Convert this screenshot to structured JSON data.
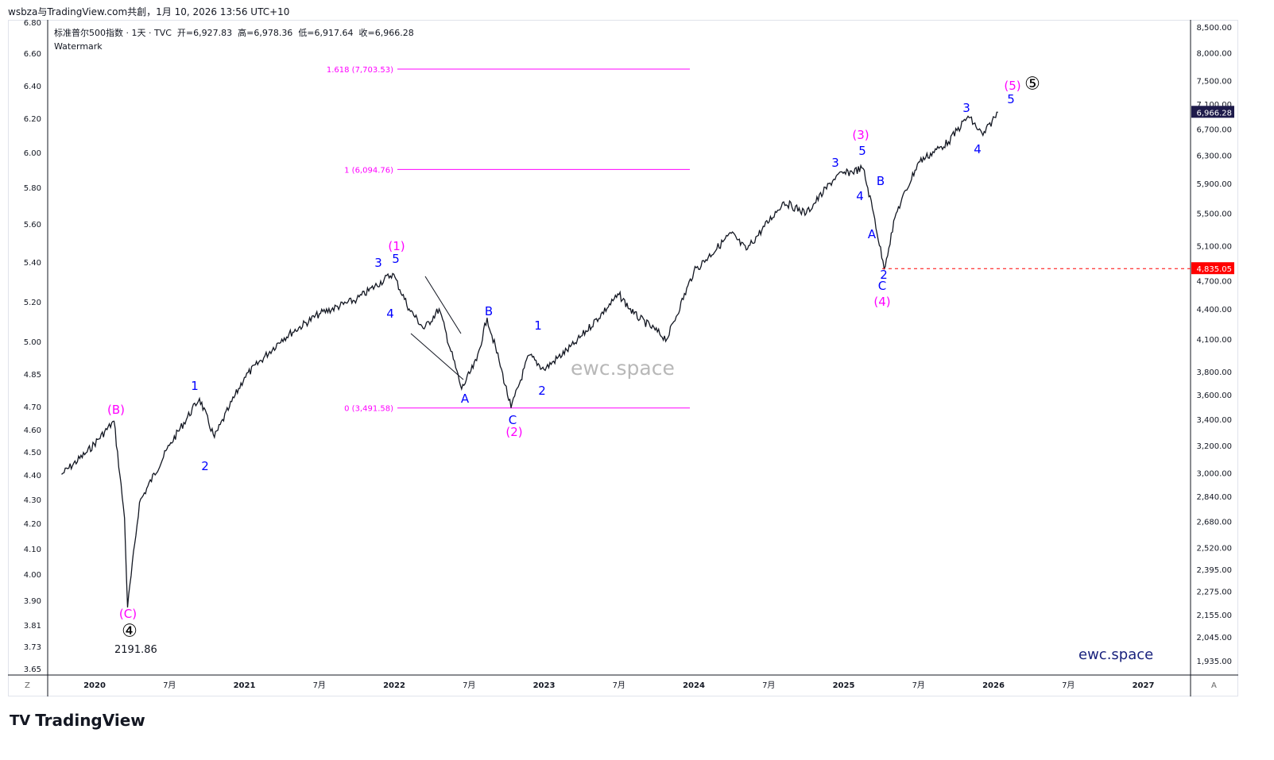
{
  "caption": "wsbza与TradingView.com共創，1月 10, 2026 13:56 UTC+10",
  "legend": {
    "title": "标准普尔500指数 · 1天 · TVC",
    "open": "开=6,927.83",
    "high": "高=6,978.36",
    "low": "低=6,917.64",
    "close": "收=6,966.28",
    "watermark_label": "Watermark"
  },
  "watermark": "ewc.space",
  "site_label": "ewc.space",
  "brand": "TradingView",
  "low_label": "2191.86",
  "axis_buttons": {
    "left": "Z",
    "right": "A"
  },
  "colors": {
    "price": "#131722",
    "fib": "#ff00ff",
    "wave_blue": "#0000ff",
    "wave_magenta": "#ff00ff",
    "last_price_bg": "#1e1b4b",
    "marker_bg": "#ff0000"
  },
  "chart_data": {
    "type": "line",
    "title": "标准普尔500指数 · 1天 · TVC",
    "scale": "log",
    "x": [
      2019.78,
      2019.95,
      2020.13,
      2020.2,
      2020.22,
      2020.3,
      2020.5,
      2020.7,
      2020.8,
      2020.9,
      2021.0,
      2021.25,
      2021.5,
      2021.75,
      2021.99,
      2022.1,
      2022.2,
      2022.3,
      2022.45,
      2022.55,
      2022.62,
      2022.7,
      2022.78,
      2022.9,
      2023.0,
      2023.2,
      2023.5,
      2023.6,
      2023.82,
      2024.0,
      2024.25,
      2024.35,
      2024.6,
      2024.75,
      2024.95,
      2025.13,
      2025.2,
      2025.27,
      2025.35,
      2025.5,
      2025.7,
      2025.83,
      2025.93,
      2026.03
    ],
    "values": [
      2990,
      3150,
      3385,
      2700,
      2191.86,
      2800,
      3200,
      3570,
      3260,
      3500,
      3750,
      4100,
      4350,
      4500,
      4780,
      4400,
      4200,
      4400,
      3650,
      3900,
      4310,
      3900,
      3491.58,
      3950,
      3820,
      4050,
      4550,
      4350,
      4100,
      4800,
      5250,
      5050,
      5650,
      5500,
      6000,
      6110,
      5500,
      4835.05,
      5500,
      6200,
      6500,
      6900,
      6600,
      6966.28
    ],
    "y_ticks_right": [
      "8,500.00",
      "8,000.00",
      "7,500.00",
      "7,100.00",
      "6,700.00",
      "6,300.00",
      "5,900.00",
      "5,500.00",
      "5,100.00",
      "4,700.00",
      "4,400.00",
      "4,100.00",
      "3,800.00",
      "3,600.00",
      "3,400.00",
      "3,200.00",
      "3,000.00",
      "2,840.00",
      "2,680.00",
      "2,520.00",
      "2,395.00",
      "2,275.00",
      "2,155.00",
      "2,045.00",
      "1,935.00"
    ],
    "y_ticks_left": [
      "6.80",
      "6.60",
      "6.40",
      "6.20",
      "6.00",
      "5.80",
      "5.60",
      "5.40",
      "5.20",
      "5.00",
      "4.85",
      "4.70",
      "4.60",
      "4.50",
      "4.40",
      "4.30",
      "4.20",
      "4.10",
      "4.00",
      "3.90",
      "3.81",
      "3.73",
      "3.65"
    ],
    "x_ticks": [
      "2020",
      "7月",
      "2021",
      "7月",
      "2022",
      "7月",
      "2023",
      "7月",
      "2024",
      "7月",
      "2025",
      "7月",
      "2026",
      "7月",
      "2027"
    ],
    "last_price": "6,966.28",
    "marker_price": "4,835.05",
    "fib_levels": [
      {
        "label": "1.618 (7,703.53)",
        "value": 7703.53
      },
      {
        "label": "1 (6,094.76)",
        "value": 6094.76
      },
      {
        "label": "0 (3,491.58)",
        "value": 3491.58
      }
    ],
    "wave_labels": [
      {
        "text": "(B)",
        "color": "magenta"
      },
      {
        "text": "(C)",
        "color": "magenta"
      },
      {
        "text": "④",
        "color": "black"
      },
      {
        "text": "1",
        "color": "blue"
      },
      {
        "text": "2",
        "color": "blue"
      },
      {
        "text": "(1)",
        "color": "magenta"
      },
      {
        "text": "3",
        "color": "blue"
      },
      {
        "text": "5",
        "color": "blue"
      },
      {
        "text": "4",
        "color": "blue"
      },
      {
        "text": "A",
        "color": "blue"
      },
      {
        "text": "B",
        "color": "blue"
      },
      {
        "text": "C",
        "color": "blue"
      },
      {
        "text": "(2)",
        "color": "magenta"
      },
      {
        "text": "1",
        "color": "blue"
      },
      {
        "text": "2",
        "color": "blue"
      },
      {
        "text": "(3)",
        "color": "magenta"
      },
      {
        "text": "3",
        "color": "blue"
      },
      {
        "text": "5",
        "color": "blue"
      },
      {
        "text": "4",
        "color": "blue"
      },
      {
        "text": "B",
        "color": "blue"
      },
      {
        "text": "A",
        "color": "blue"
      },
      {
        "text": "2",
        "color": "blue"
      },
      {
        "text": "C",
        "color": "blue"
      },
      {
        "text": "(4)",
        "color": "magenta"
      },
      {
        "text": "3",
        "color": "blue"
      },
      {
        "text": "4",
        "color": "blue"
      },
      {
        "text": "(5)",
        "color": "magenta"
      },
      {
        "text": "5",
        "color": "blue"
      },
      {
        "text": "⑤",
        "color": "black"
      }
    ]
  }
}
